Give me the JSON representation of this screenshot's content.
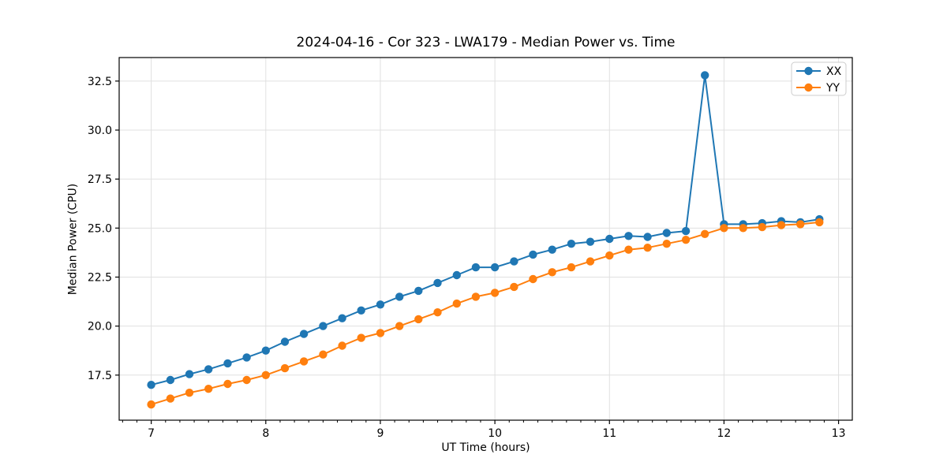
{
  "chart_data": {
    "type": "line",
    "title": "2024-04-16 - Cor 323 - LWA179 - Median Power vs. Time",
    "xlabel": "UT Time (hours)",
    "ylabel": "Median Power (CPU)",
    "x": [
      7.0,
      7.167,
      7.333,
      7.5,
      7.667,
      7.833,
      8.0,
      8.167,
      8.333,
      8.5,
      8.667,
      8.833,
      9.0,
      9.167,
      9.333,
      9.5,
      9.667,
      9.833,
      10.0,
      10.167,
      10.333,
      10.5,
      10.667,
      10.833,
      11.0,
      11.167,
      11.333,
      11.5,
      11.667,
      11.833,
      12.0,
      12.167,
      12.333,
      12.5,
      12.667,
      12.833
    ],
    "series": [
      {
        "name": "XX",
        "color": "#1f77b4",
        "marker": "circle",
        "values": [
          17.0,
          17.25,
          17.55,
          17.8,
          18.1,
          18.4,
          18.75,
          19.2,
          19.6,
          20.0,
          20.4,
          20.8,
          21.1,
          21.5,
          21.8,
          22.2,
          22.6,
          23.0,
          23.0,
          23.3,
          23.65,
          23.9,
          24.2,
          24.3,
          24.45,
          24.6,
          24.55,
          24.75,
          24.85,
          32.8,
          25.2,
          25.2,
          25.25,
          25.35,
          25.3,
          25.45
        ]
      },
      {
        "name": "YY",
        "color": "#ff7f0e",
        "marker": "circle",
        "values": [
          16.0,
          16.3,
          16.6,
          16.8,
          17.05,
          17.25,
          17.5,
          17.85,
          18.2,
          18.55,
          19.0,
          19.4,
          19.65,
          20.0,
          20.35,
          20.7,
          21.15,
          21.5,
          21.7,
          22.0,
          22.4,
          22.75,
          23.0,
          23.3,
          23.6,
          23.9,
          24.0,
          24.2,
          24.4,
          24.7,
          25.0,
          25.0,
          25.05,
          25.15,
          25.2,
          25.3
        ]
      }
    ],
    "xlim": [
      6.72,
      13.12
    ],
    "ylim": [
      15.2,
      33.7
    ],
    "xticks": [
      7,
      8,
      9,
      10,
      11,
      12,
      13
    ],
    "xtick_labels": [
      "7",
      "8",
      "9",
      "10",
      "11",
      "12",
      "13"
    ],
    "yticks": [
      17.5,
      20.0,
      22.5,
      25.0,
      27.5,
      30.0,
      32.5
    ],
    "ytick_labels": [
      "17.5",
      "20.0",
      "22.5",
      "25.0",
      "27.5",
      "30.0",
      "32.5"
    ],
    "minor_x_step": 0.125,
    "grid": true,
    "legend_position": "upper right"
  },
  "colors": {
    "background": "#ffffff",
    "grid": "#e0e0e0",
    "spine": "#000000",
    "legend_border": "#cccccc",
    "legend_background": "rgba(255,255,255,0.85)"
  }
}
